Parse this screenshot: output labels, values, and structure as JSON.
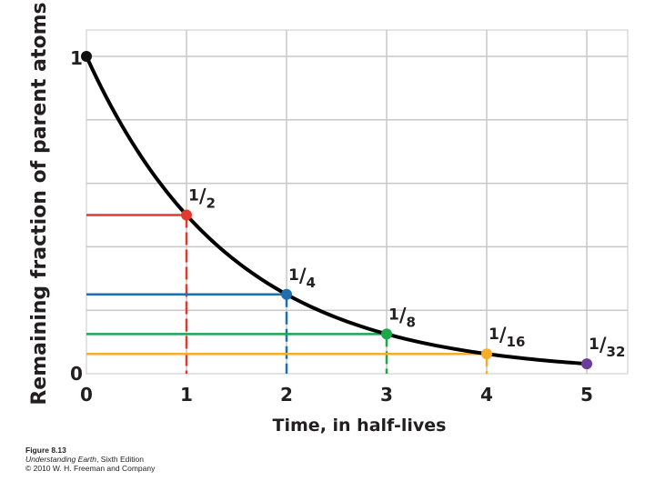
{
  "chart_data": {
    "type": "line",
    "xlabel": "Time, in half-lives",
    "ylabel": "Remaining fraction of parent atoms",
    "xlim": [
      0,
      5.4
    ],
    "ylim": [
      0,
      1.05
    ],
    "x_ticks": [
      "0",
      "1",
      "2",
      "3",
      "4",
      "5"
    ],
    "y_ticks": [
      "0",
      "1"
    ],
    "grid": true,
    "curve": {
      "name": "",
      "function": "y = 0.5^x",
      "color": "#000000"
    },
    "points": [
      {
        "x": 0,
        "y": 1,
        "label": "",
        "color": "#111111"
      },
      {
        "x": 1,
        "y": 0.5,
        "label": "1/2",
        "num": "1",
        "den": "2",
        "color": "#e03a2e"
      },
      {
        "x": 2,
        "y": 0.25,
        "label": "1/4",
        "num": "1",
        "den": "4",
        "color": "#1f6fb0"
      },
      {
        "x": 3,
        "y": 0.125,
        "label": "1/8",
        "num": "1",
        "den": "8",
        "color": "#1ea64a"
      },
      {
        "x": 4,
        "y": 0.0625,
        "label": "1/16",
        "num": "1",
        "den": "16",
        "color": "#f6ad2a"
      },
      {
        "x": 5,
        "y": 0.03125,
        "label": "1/32",
        "num": "1",
        "den": "32",
        "color": "#6a3d9a"
      }
    ]
  },
  "caption": {
    "figure": "Figure 8.13",
    "book_title": "Understanding Earth",
    "edition": ", Sixth Edition",
    "copyright": "© 2010 W. H. Freeman and Company"
  }
}
